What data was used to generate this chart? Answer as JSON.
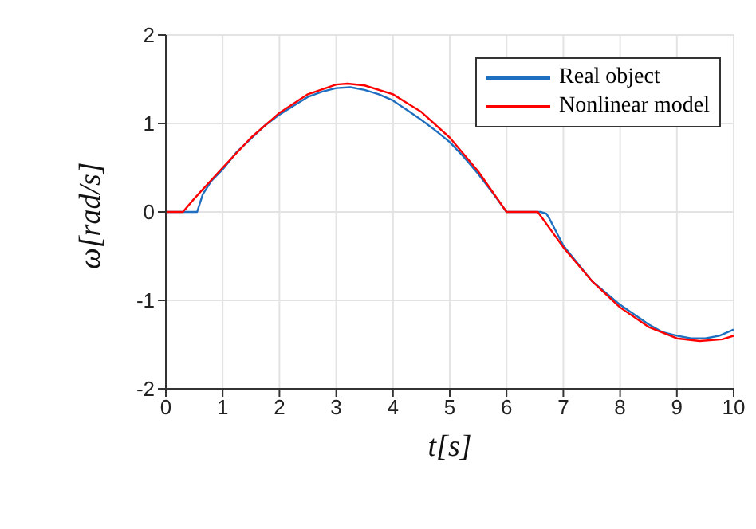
{
  "chart_data": {
    "type": "line",
    "xlabel": "t[s]",
    "ylabel": "ω[rad/s]",
    "xlim": [
      0,
      10
    ],
    "xticks": [
      0,
      1,
      2,
      3,
      4,
      5,
      6,
      7,
      8,
      9,
      10
    ],
    "ylim": [
      -2,
      2
    ],
    "yticks": [
      -2,
      -1,
      0,
      1,
      2
    ],
    "grid": true,
    "legend": "top right",
    "series": [
      {
        "name": "Real object",
        "color": "#1f6fc0",
        "x": [
          0,
          0.55,
          0.65,
          0.8,
          1,
          1.25,
          1.5,
          1.75,
          2,
          2.25,
          2.5,
          2.75,
          3,
          3.25,
          3.5,
          3.75,
          4,
          4.25,
          4.5,
          4.75,
          5,
          5.25,
          5.5,
          5.75,
          6,
          6.6,
          6.7,
          6.75,
          7,
          7.5,
          8,
          8.25,
          8.5,
          8.75,
          9,
          9.25,
          9.5,
          9.75,
          10
        ],
        "values": [
          0,
          0,
          0.2,
          0.35,
          0.48,
          0.68,
          0.83,
          0.98,
          1.1,
          1.2,
          1.3,
          1.36,
          1.4,
          1.41,
          1.38,
          1.33,
          1.26,
          1.15,
          1.04,
          0.92,
          0.79,
          0.62,
          0.43,
          0.22,
          0,
          0,
          -0.02,
          -0.07,
          -0.38,
          -0.78,
          -1.05,
          -1.16,
          -1.27,
          -1.36,
          -1.4,
          -1.43,
          -1.43,
          -1.4,
          -1.33
        ]
      },
      {
        "name": "Nonlinear model",
        "color": "#ff0000",
        "x": [
          0,
          0.3,
          0.5,
          1,
          1.5,
          2,
          2.5,
          3,
          3.2,
          3.5,
          4,
          4.5,
          5,
          5.5,
          6,
          6.55,
          7,
          7.5,
          8,
          8.5,
          9,
          9.4,
          9.8,
          10
        ],
        "values": [
          0,
          0,
          0.15,
          0.5,
          0.84,
          1.12,
          1.33,
          1.44,
          1.45,
          1.43,
          1.33,
          1.13,
          0.84,
          0.46,
          0,
          0,
          -0.4,
          -0.78,
          -1.08,
          -1.3,
          -1.43,
          -1.46,
          -1.44,
          -1.4
        ]
      }
    ]
  }
}
